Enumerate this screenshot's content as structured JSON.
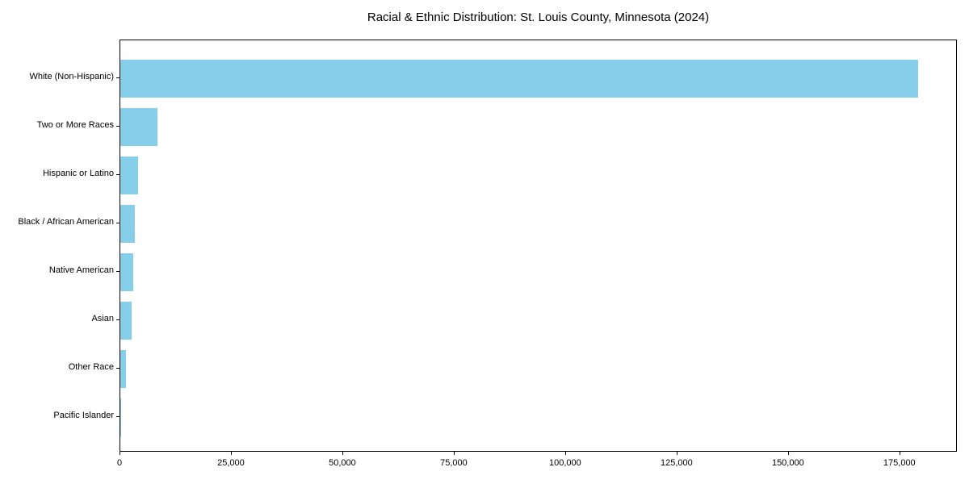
{
  "chart_data": {
    "type": "bar",
    "orientation": "horizontal",
    "title": "Racial & Ethnic Distribution: St. Louis County, Minnesota (2024)",
    "xlabel": "",
    "ylabel": "",
    "categories": [
      "White (Non-Hispanic)",
      "Two or More Races",
      "Hispanic or Latino",
      "Black / African American",
      "Native American",
      "Asian",
      "Other Race",
      "Pacific Islander"
    ],
    "values": [
      179000,
      8350,
      4000,
      3300,
      2900,
      2500,
      1200,
      100
    ],
    "xlim": [
      0,
      187900
    ],
    "x_ticks": [
      0,
      25000,
      50000,
      75000,
      100000,
      125000,
      150000,
      175000
    ],
    "x_tick_labels": [
      "0",
      "25,000",
      "50,000",
      "75,000",
      "100,000",
      "125,000",
      "150,000",
      "175,000"
    ],
    "grid": false,
    "legend": null,
    "bar_color": "#87CEEB",
    "axis_color": "#000000",
    "text_color": "#000000",
    "background_color": "#ffffff"
  }
}
